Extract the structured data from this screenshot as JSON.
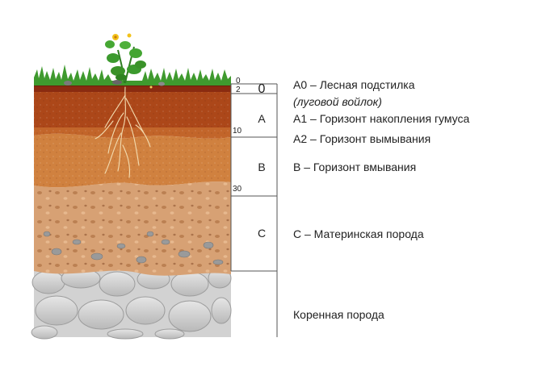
{
  "diagram": {
    "depth_ticks": [
      "0",
      "2",
      "10",
      "30"
    ],
    "horizon_letters": [
      "0",
      "A",
      "B",
      "C"
    ],
    "descriptions": {
      "a0": "А0 – Лесная подстилка",
      "a0_sub": "(луговой войлок)",
      "a1": "А1 – Горизонт накопления гумуса",
      "a2": "А2 – Горизонт вымывания",
      "b": "В – Горизонт вмывания",
      "c": "С – Материнская порода",
      "bedrock": "Коренная порода"
    },
    "colors": {
      "humus": "#8e2f12",
      "a1": "#b34d1c",
      "a2": "#c66a2c",
      "b": "#d98a4a",
      "c": "#d99e6e",
      "bedrock": "#cfcfcf",
      "grass": "#3f9a2e",
      "flower": "#f2c21b"
    }
  }
}
